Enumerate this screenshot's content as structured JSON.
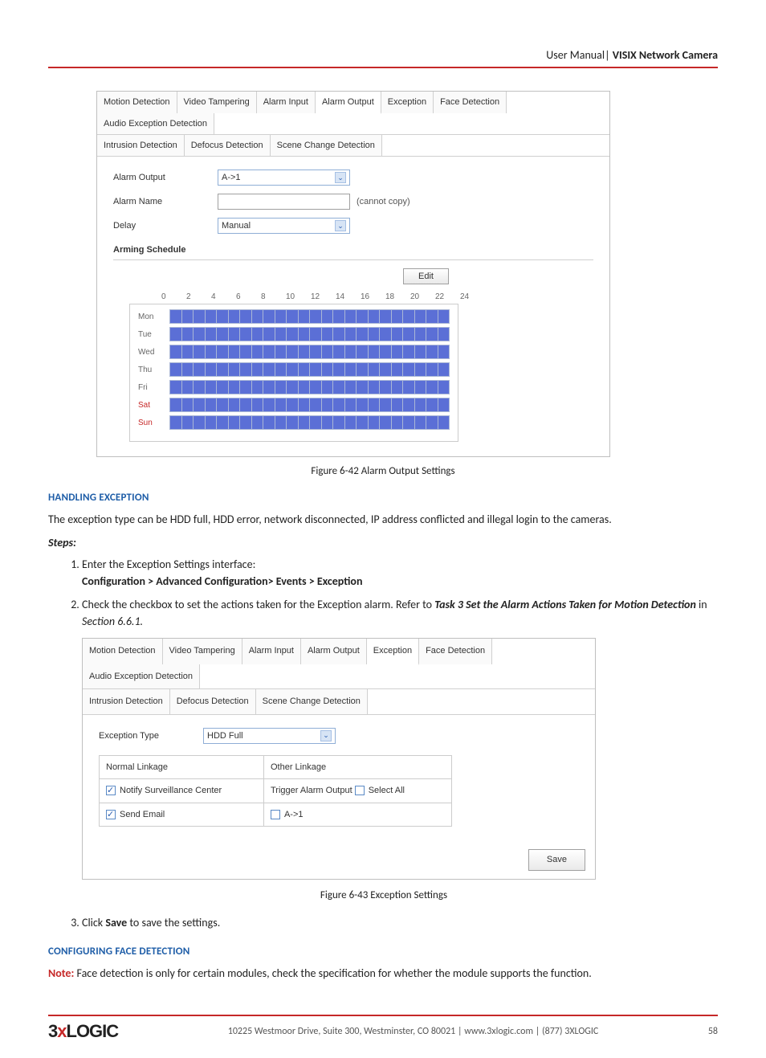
{
  "header": {
    "prefix": "User Manual| ",
    "title": "VISIX Network Camera"
  },
  "tabs_row1": [
    "Motion Detection",
    "Video Tampering",
    "Alarm Input",
    "Alarm Output",
    "Exception",
    "Face Detection",
    "Audio Exception Detection"
  ],
  "tabs_row2": [
    "Intrusion Detection",
    "Defocus Detection",
    "Scene Change Detection"
  ],
  "panel1": {
    "active_tab_index": 3,
    "alarm_output_label": "Alarm Output",
    "alarm_output_value": "A->1",
    "alarm_name_label": "Alarm Name",
    "alarm_name_value": "",
    "alarm_name_hint": "(cannot copy)",
    "delay_label": "Delay",
    "delay_value": "Manual",
    "arming_schedule_label": "Arming Schedule",
    "edit_label": "Edit",
    "hours": [
      "0",
      "2",
      "4",
      "6",
      "8",
      "10",
      "12",
      "14",
      "16",
      "18",
      "20",
      "22",
      "24"
    ],
    "days": [
      {
        "label": "Mon",
        "wknd": false
      },
      {
        "label": "Tue",
        "wknd": false
      },
      {
        "label": "Wed",
        "wknd": false
      },
      {
        "label": "Thu",
        "wknd": false
      },
      {
        "label": "Fri",
        "wknd": false
      },
      {
        "label": "Sat",
        "wknd": true
      },
      {
        "label": "Sun",
        "wknd": true
      }
    ],
    "cells_per_row": 24,
    "schedule_fill_color": "#5b6fd6",
    "schedule_border_color": "#aab7d6"
  },
  "caption1": {
    "prefix": "Figure 6-42 ",
    "title": "Alarm Output Settings"
  },
  "heading1": "HANDLING EXCEPTION",
  "para1": "The exception type can be HDD full, HDD error, network disconnected, IP address conflicted and illegal login to the cameras.",
  "steps_label": "Steps:",
  "step1": "Enter the Exception Settings interface:",
  "step1_path": "Configuration > Advanced Configuration> Events > Exception",
  "step2_prefix": "Check the checkbox to set the actions taken for the Exception alarm. Refer to ",
  "step2_taskref": "Task 3 Set the Alarm Actions Taken for Motion Detection",
  "step2_middle": " in ",
  "step2_section": "Section 6.6.1.",
  "panel2": {
    "active_tab_index": 4,
    "exception_type_label": "Exception Type",
    "exception_type_value": "HDD Full",
    "normal_linkage_label": "Normal Linkage",
    "other_linkage_label": "Other Linkage",
    "notify_label": "Notify Surveillance Center",
    "notify_checked": true,
    "send_email_label": "Send Email",
    "send_email_checked": true,
    "trigger_prefix": "Trigger Alarm Output ",
    "select_all_label": "Select All",
    "select_all_checked": false,
    "a1_label": "A->1",
    "a1_checked": false,
    "save_label": "Save"
  },
  "caption2": {
    "prefix": "Figure 6-43 ",
    "title": "Exception Settings"
  },
  "step3_prefix": "Click ",
  "step3_bold": "Save",
  "step3_suffix": " to save the settings.",
  "heading2": "CONFIGURING FACE DETECTION",
  "note_label": "Note:",
  "note_text": " Face detection is only for certain modules, check the specification for whether the module supports the function.",
  "footer": {
    "logo_part1": "3",
    "logo_x": "x",
    "logo_part2": "LOGIC",
    "address": "10225 Westmoor Drive, Suite 300, Westminster, CO 80021 | www.3xlogic.com | (877) 3XLOGIC",
    "page": "58"
  }
}
